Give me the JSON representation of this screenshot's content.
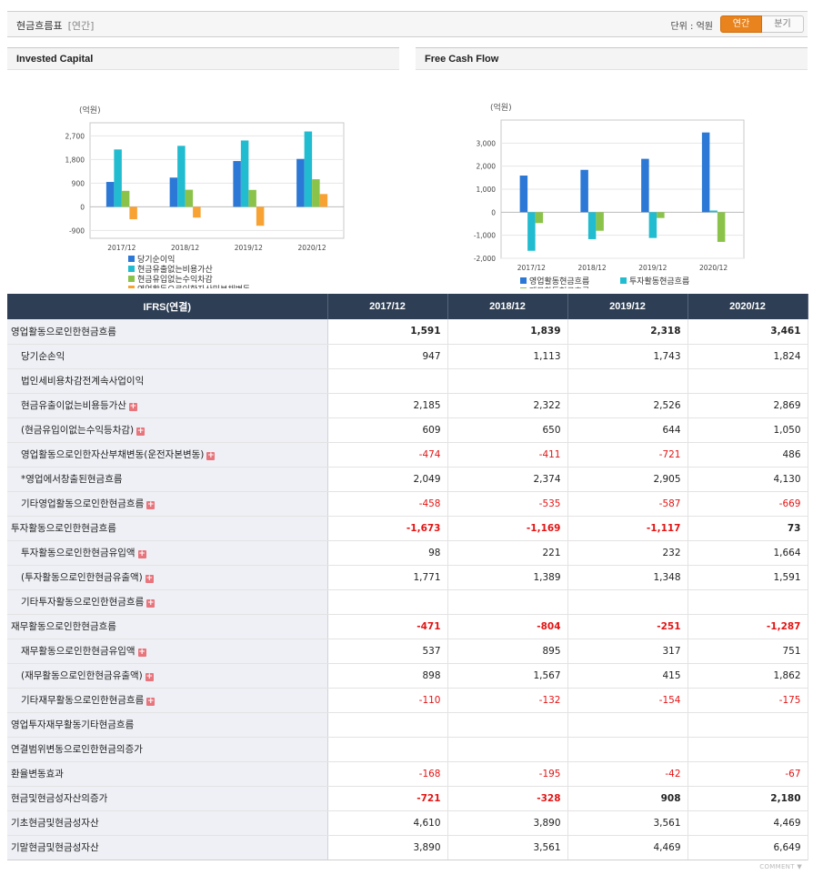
{
  "header": {
    "title": "현금흐름표",
    "subtitle": "[연간]",
    "unit": "단위 : 억원",
    "tabs": [
      "연간",
      "분기"
    ]
  },
  "charts": {
    "left_title": "Invested Capital",
    "right_title": "Free Cash Flow"
  },
  "chart_data": [
    {
      "type": "bar",
      "title": "Invested Capital",
      "ylabel": "(억원)",
      "categories": [
        "2017/12",
        "2018/12",
        "2019/12",
        "2020/12"
      ],
      "ylim": [
        -1200,
        3200
      ],
      "yticks": [
        -900,
        0,
        900,
        1800,
        2700
      ],
      "ytick_labels": [
        "-900",
        "0",
        "900",
        "1,800",
        "2,700"
      ],
      "grid": true,
      "legend_position": "bottom",
      "series": [
        {
          "name": "당기순이익",
          "color": "#2b78d6",
          "values": [
            947,
            1113,
            1743,
            1824
          ]
        },
        {
          "name": "현금유출없는비용가산",
          "color": "#21bccf",
          "values": [
            2185,
            2322,
            2526,
            2869
          ]
        },
        {
          "name": "현금유입없는수익차감",
          "color": "#8bc34a",
          "values": [
            609,
            650,
            644,
            1050
          ]
        },
        {
          "name": "영업활동으로인한자산및부채변동",
          "color": "#f8a233",
          "values": [
            -474,
            -411,
            -721,
            486
          ]
        }
      ]
    },
    {
      "type": "bar",
      "title": "Free Cash Flow",
      "ylabel": "(억원)",
      "categories": [
        "2017/12",
        "2018/12",
        "2019/12",
        "2020/12"
      ],
      "ylim": [
        -2000,
        4000
      ],
      "yticks": [
        -2000,
        -1000,
        0,
        1000,
        2000,
        3000
      ],
      "ytick_labels": [
        "-2,000",
        "-1,000",
        "0",
        "1,000",
        "2,000",
        "3,000"
      ],
      "grid": true,
      "legend_position": "bottom",
      "series": [
        {
          "name": "영업활동현금흐름",
          "color": "#2b78d6",
          "values": [
            1591,
            1839,
            2318,
            3461
          ]
        },
        {
          "name": "투자활동현금흐름",
          "color": "#21bccf",
          "values": [
            -1673,
            -1169,
            -1117,
            73
          ]
        },
        {
          "name": "재무활동현금흐름",
          "color": "#8bc34a",
          "values": [
            -471,
            -804,
            -251,
            -1287
          ]
        }
      ]
    }
  ],
  "table": {
    "head": [
      "IFRS(연결)",
      "2017/12",
      "2018/12",
      "2019/12",
      "2020/12"
    ],
    "rows": [
      {
        "label": "영업활동으로인한현금흐름",
        "level": 0,
        "bold": true,
        "plus": false,
        "values": [
          "1,591",
          "1,839",
          "2,318",
          "3,461"
        ]
      },
      {
        "label": "당기순손익",
        "level": 1,
        "bold": false,
        "plus": false,
        "values": [
          "947",
          "1,113",
          "1,743",
          "1,824"
        ]
      },
      {
        "label": "법인세비용차감전계속사업이익",
        "level": 1,
        "bold": false,
        "plus": false,
        "values": [
          "",
          "",
          "",
          ""
        ]
      },
      {
        "label": "현금유출이없는비용등가산",
        "level": 1,
        "bold": false,
        "plus": true,
        "values": [
          "2,185",
          "2,322",
          "2,526",
          "2,869"
        ]
      },
      {
        "label": "(현금유입이없는수익등차감)",
        "level": 1,
        "bold": false,
        "plus": true,
        "values": [
          "609",
          "650",
          "644",
          "1,050"
        ]
      },
      {
        "label": "영업활동으로인한자산부채변동(운전자본변동)",
        "level": 1,
        "bold": false,
        "plus": true,
        "values": [
          "-474",
          "-411",
          "-721",
          "486"
        ]
      },
      {
        "label": "*영업에서창출된현금흐름",
        "level": 1,
        "bold": false,
        "plus": false,
        "values": [
          "2,049",
          "2,374",
          "2,905",
          "4,130"
        ]
      },
      {
        "label": "기타영업활동으로인한현금흐름",
        "level": 1,
        "bold": false,
        "plus": true,
        "values": [
          "-458",
          "-535",
          "-587",
          "-669"
        ]
      },
      {
        "label": "투자활동으로인한현금흐름",
        "level": 0,
        "bold": true,
        "plus": false,
        "values": [
          "-1,673",
          "-1,169",
          "-1,117",
          "73"
        ]
      },
      {
        "label": "투자활동으로인한현금유입액",
        "level": 1,
        "bold": false,
        "plus": true,
        "values": [
          "98",
          "221",
          "232",
          "1,664"
        ]
      },
      {
        "label": "(투자활동으로인한현금유출액)",
        "level": 1,
        "bold": false,
        "plus": true,
        "values": [
          "1,771",
          "1,389",
          "1,348",
          "1,591"
        ]
      },
      {
        "label": "기타투자활동으로인한현금흐름",
        "level": 1,
        "bold": false,
        "plus": true,
        "values": [
          "",
          "",
          "",
          ""
        ]
      },
      {
        "label": "재무활동으로인한현금흐름",
        "level": 0,
        "bold": true,
        "plus": false,
        "values": [
          "-471",
          "-804",
          "-251",
          "-1,287"
        ]
      },
      {
        "label": "재무활동으로인한현금유입액",
        "level": 1,
        "bold": false,
        "plus": true,
        "values": [
          "537",
          "895",
          "317",
          "751"
        ]
      },
      {
        "label": "(재무활동으로인한현금유출액)",
        "level": 1,
        "bold": false,
        "plus": true,
        "values": [
          "898",
          "1,567",
          "415",
          "1,862"
        ]
      },
      {
        "label": "기타재무활동으로인한현금흐름",
        "level": 1,
        "bold": false,
        "plus": true,
        "values": [
          "-110",
          "-132",
          "-154",
          "-175"
        ]
      },
      {
        "label": "영업투자재무활동기타현금흐름",
        "level": 0,
        "bold": false,
        "plus": false,
        "values": [
          "",
          "",
          "",
          ""
        ]
      },
      {
        "label": "연결범위변동으로인한현금의증가",
        "level": 0,
        "bold": false,
        "plus": false,
        "values": [
          "",
          "",
          "",
          ""
        ]
      },
      {
        "label": "환율변동효과",
        "level": 0,
        "bold": false,
        "plus": false,
        "values": [
          "-168",
          "-195",
          "-42",
          "-67"
        ]
      },
      {
        "label": "현금및현금성자산의증가",
        "level": 0,
        "bold": true,
        "plus": false,
        "values": [
          "-721",
          "-328",
          "908",
          "2,180"
        ]
      },
      {
        "label": "기초현금및현금성자산",
        "level": 0,
        "bold": false,
        "plus": false,
        "values": [
          "4,610",
          "3,890",
          "3,561",
          "4,469"
        ]
      },
      {
        "label": "기말현금및현금성자산",
        "level": 0,
        "bold": false,
        "plus": false,
        "values": [
          "3,890",
          "3,561",
          "4,469",
          "6,649"
        ]
      }
    ]
  },
  "footer": {
    "comment": "COMMENT"
  }
}
